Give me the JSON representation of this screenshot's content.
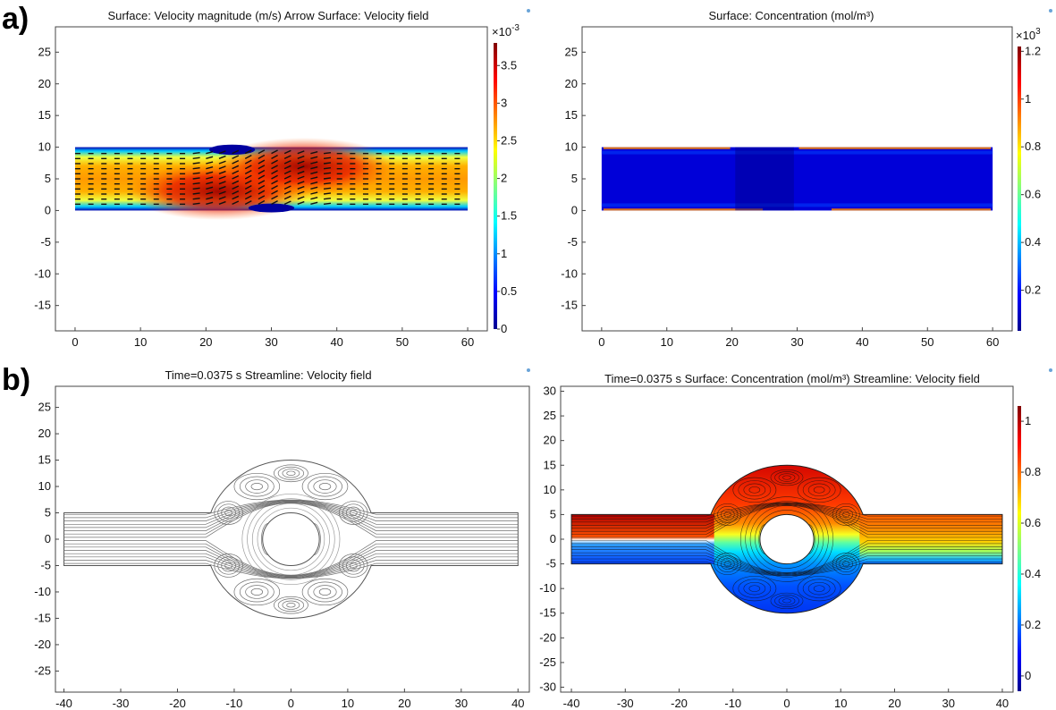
{
  "panel_labels": [
    "a)",
    "b)"
  ],
  "colors": {
    "jet": [
      "#00008f",
      "#0000ff",
      "#0080ff",
      "#00ffff",
      "#80ff80",
      "#ffff00",
      "#ff8000",
      "#ff0000",
      "#800000"
    ],
    "streamline_gray": "#707070",
    "frame": "#444444"
  },
  "chart_data": [
    {
      "id": "a-left",
      "type": "heatmap",
      "title": "Surface: Velocity magnitude (m/s)  Arrow Surface: Velocity field",
      "xlabel": "",
      "ylabel": "",
      "xlim": [
        -3,
        63
      ],
      "ylim": [
        -19,
        29
      ],
      "xticks": [
        0,
        10,
        20,
        30,
        40,
        50,
        60
      ],
      "yticks": [
        -15,
        -10,
        -5,
        0,
        5,
        10,
        15,
        20,
        25
      ],
      "domain": {
        "shape": "channel",
        "x": [
          0,
          60
        ],
        "y": [
          0,
          10
        ]
      },
      "colorbar": {
        "multiplier": "×10",
        "exponent": "-3",
        "range": [
          0,
          3.8
        ],
        "ticks": [
          0,
          0.5,
          1,
          1.5,
          2,
          2.5,
          3,
          3.5
        ],
        "labels": [
          "0",
          "0.5",
          "1",
          "1.5",
          "2",
          "2.5",
          "3",
          "3.5"
        ]
      },
      "overlay": "arrows"
    },
    {
      "id": "a-right",
      "type": "heatmap",
      "title": "Surface: Concentration (mol/m³)",
      "xlabel": "",
      "ylabel": "",
      "xlim": [
        -3,
        63
      ],
      "ylim": [
        -19,
        29
      ],
      "xticks": [
        0,
        10,
        20,
        30,
        40,
        50,
        60
      ],
      "yticks": [
        -15,
        -10,
        -5,
        0,
        5,
        10,
        15,
        20,
        25
      ],
      "domain": {
        "shape": "channel",
        "x": [
          0,
          60
        ],
        "y": [
          0,
          10
        ]
      },
      "colorbar": {
        "multiplier": "×10",
        "exponent": "3",
        "range": [
          0.03,
          1.22
        ],
        "ticks": [
          0.2,
          0.4,
          0.6,
          0.8,
          1,
          1.2
        ],
        "labels": [
          "0.2",
          "0.4",
          "0.6",
          "0.8",
          "1",
          "1.2"
        ]
      },
      "overlay": "none"
    },
    {
      "id": "b-left",
      "type": "line",
      "title": "Time=0.0375 s   Streamline: Velocity field",
      "xlabel": "",
      "ylabel": "",
      "xlim": [
        -41.5,
        42
      ],
      "ylim": [
        -29,
        29
      ],
      "xticks": [
        -40,
        -30,
        -20,
        -10,
        0,
        10,
        20,
        30,
        40
      ],
      "yticks": [
        -25,
        -20,
        -15,
        -10,
        -5,
        0,
        5,
        10,
        15,
        20,
        25
      ],
      "domain": {
        "shape": "channel-with-chamber",
        "x": [
          -40,
          40
        ],
        "y": [
          -5,
          5
        ],
        "chamber_radius": 15,
        "obstacle_radius": 5
      },
      "overlay": "streamlines"
    },
    {
      "id": "b-right",
      "type": "heatmap",
      "title": "Time=0.0375 s   Surface: Concentration (mol/m³)  Streamline: Velocity field",
      "xlabel": "",
      "ylabel": "",
      "xlim": [
        -42,
        42
      ],
      "ylim": [
        -31,
        31
      ],
      "xticks": [
        -40,
        -30,
        -20,
        -10,
        0,
        10,
        20,
        30,
        40
      ],
      "yticks": [
        -30,
        -25,
        -20,
        -15,
        -10,
        -5,
        0,
        5,
        10,
        15,
        20,
        25,
        30
      ],
      "domain": {
        "shape": "channel-with-chamber",
        "x": [
          -40,
          40
        ],
        "y": [
          -5,
          5
        ],
        "chamber_radius": 15,
        "obstacle_radius": 5
      },
      "colorbar": {
        "multiplier": "",
        "exponent": "",
        "range": [
          -0.06,
          1.06
        ],
        "ticks": [
          0,
          0.2,
          0.4,
          0.6,
          0.8,
          1
        ],
        "labels": [
          "0",
          "0.2",
          "0.4",
          "0.6",
          "0.8",
          "1"
        ]
      },
      "overlay": "streamlines"
    }
  ]
}
